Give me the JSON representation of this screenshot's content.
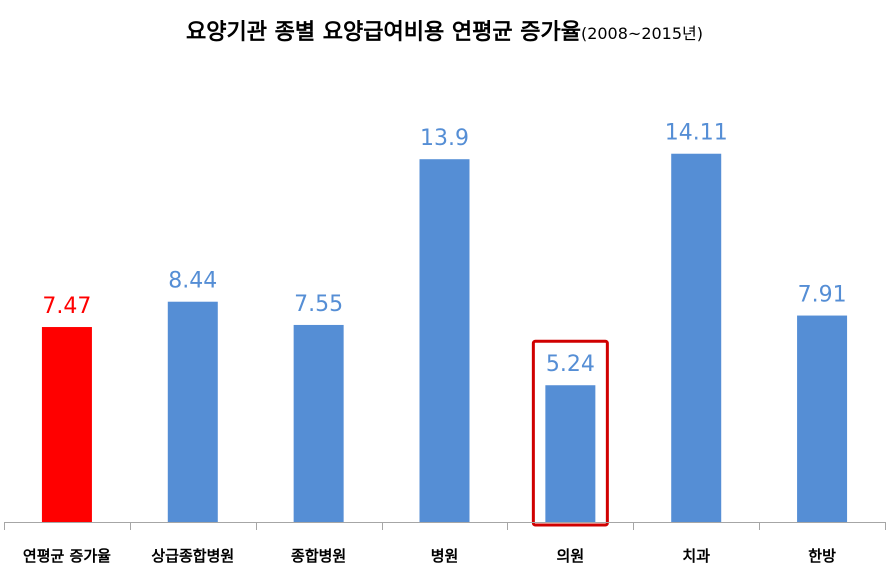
{
  "title": "요양기관 종별 요양급여비용  연평균 증가율",
  "subtitle": "(2008~2015년)",
  "colors": {
    "highlight": "#ff0000",
    "bar": "#558ed5",
    "highlight_box": "#d00000"
  },
  "chart_data": {
    "type": "bar",
    "categories": [
      "연평균 증가율",
      "상급종합병원",
      "종합병원",
      "병원",
      "의원",
      "치과",
      "한방"
    ],
    "values": [
      7.47,
      8.44,
      7.55,
      13.9,
      5.24,
      14.11,
      7.91
    ],
    "value_labels": [
      "7.47",
      "8.44",
      "7.55",
      "13.9",
      "5.24",
      "14.11",
      "7.91"
    ],
    "highlighted_bar": "연평균 증가율",
    "boxed_bar": "의원",
    "grid": false,
    "legend": "none"
  }
}
